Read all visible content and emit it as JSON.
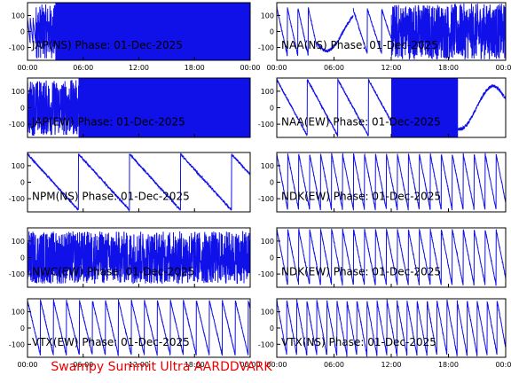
{
  "footer": "Swampy Summit Ultra AARDDVARK",
  "colors": {
    "trace": "#1010e8",
    "frame": "#000000",
    "footer": "#ee0000"
  },
  "chart_data": [
    {
      "type": "line",
      "title": "JAP(NS) Phase: 01-Dec-2025",
      "ylim": [
        -180,
        180
      ],
      "yticks": [
        100,
        0,
        -100
      ],
      "xlim": [
        0,
        24
      ],
      "xticks": [
        "00:00",
        "06:00",
        "12:00",
        "18:00",
        "00:00"
      ],
      "xticks_shown": true,
      "behavior": "noise",
      "segments": [
        {
          "from": 0,
          "to": 0.9,
          "mode": "sawtooth",
          "period": 0.3,
          "amp": 80
        },
        {
          "from": 0.9,
          "to": 3.0,
          "mode": "dense",
          "amp": 170
        },
        {
          "from": 3.0,
          "to": 24,
          "mode": "fill"
        }
      ]
    },
    {
      "type": "line",
      "title": "NAA(NS) Phase: 01-Dec-2025",
      "ylim": [
        -180,
        180
      ],
      "yticks": [
        100,
        0,
        -100
      ],
      "xlim": [
        0,
        24
      ],
      "xticks": [
        "00:00",
        "06:00",
        "12:00",
        "18:00",
        "00:00"
      ],
      "xticks_shown": true,
      "behavior": "noise",
      "segments": [
        {
          "from": 0,
          "to": 4.2,
          "mode": "sawtooth",
          "period": 1.1,
          "amp": 150
        },
        {
          "from": 4.2,
          "to": 8.0,
          "mode": "slow",
          "amp": 120
        },
        {
          "from": 8.0,
          "to": 12.0,
          "mode": "sawtooth",
          "period": 1.5,
          "amp": 140
        },
        {
          "from": 12.0,
          "to": 24,
          "mode": "dense",
          "amp": 175
        }
      ]
    },
    {
      "type": "line",
      "title": "JAP(EW) Phase: 01-Dec-2025",
      "ylim": [
        -180,
        180
      ],
      "yticks": [
        100,
        0,
        -100
      ],
      "xlim": [
        0,
        24
      ],
      "xticks": [],
      "xticks_shown": false,
      "behavior": "noise",
      "segments": [
        {
          "from": 0,
          "to": 5.5,
          "mode": "dense",
          "amp": 170
        },
        {
          "from": 5.5,
          "to": 24,
          "mode": "fill"
        }
      ]
    },
    {
      "type": "line",
      "title": "NAA(EW) Phase: 01-Dec-2025",
      "ylim": [
        -180,
        180
      ],
      "yticks": [
        100,
        0,
        -100
      ],
      "xlim": [
        0,
        24
      ],
      "xticks": [],
      "xticks_shown": false,
      "behavior": "noise",
      "segments": [
        {
          "from": 0,
          "to": 12.0,
          "mode": "sawtooth",
          "period": 3.2,
          "amp": 170
        },
        {
          "from": 12.0,
          "to": 19.0,
          "mode": "fill"
        },
        {
          "from": 19.0,
          "to": 24,
          "mode": "slow",
          "amp": 130
        }
      ]
    },
    {
      "type": "line",
      "title": "NPM(NS) Phase: 01-Dec-2025",
      "ylim": [
        -180,
        180
      ],
      "yticks": [
        100,
        0,
        -100
      ],
      "xlim": [
        0,
        24
      ],
      "xticks": [],
      "xticks_shown": false,
      "behavior": "noise",
      "segments": [
        {
          "from": 0,
          "to": 24,
          "mode": "sawtooth",
          "period": 5.5,
          "amp": 170
        }
      ]
    },
    {
      "type": "line",
      "title": "NDK(EW) Phase: 01-Dec-2025",
      "ylim": [
        -180,
        180
      ],
      "yticks": [
        100,
        0,
        -100
      ],
      "xlim": [
        0,
        24
      ],
      "xticks": [],
      "xticks_shown": false,
      "behavior": "noise",
      "segments": [
        {
          "from": 0,
          "to": 24,
          "mode": "sawtooth",
          "period": 1.15,
          "amp": 170
        }
      ]
    },
    {
      "type": "line",
      "title": "NWC(EW) Phase: 01-Dec-2025",
      "ylim": [
        -180,
        180
      ],
      "yticks": [
        100,
        0,
        -100
      ],
      "xlim": [
        0,
        24
      ],
      "xticks": [],
      "xticks_shown": false,
      "behavior": "noise",
      "segments": [
        {
          "from": 0,
          "to": 24,
          "mode": "dense",
          "amp": 160
        }
      ]
    },
    {
      "type": "line",
      "title": "NDK(EW) Phase: 01-Dec-2025",
      "ylim": [
        -180,
        180
      ],
      "yticks": [
        100,
        0,
        -100
      ],
      "xlim": [
        0,
        24
      ],
      "xticks": [],
      "xticks_shown": false,
      "behavior": "noise",
      "segments": [
        {
          "from": 0,
          "to": 24,
          "mode": "sawtooth",
          "period": 1.15,
          "amp": 170
        }
      ]
    },
    {
      "type": "line",
      "title": "VTX(EW) Phase: 01-Dec-2025",
      "ylim": [
        -180,
        180
      ],
      "yticks": [
        100,
        0,
        -100
      ],
      "xlim": [
        0,
        24
      ],
      "xticks": [
        "00:00",
        "06:00",
        "12:00",
        "18:00",
        "00:00"
      ],
      "xticks_shown": true,
      "behavior": "noise",
      "segments": [
        {
          "from": 0,
          "to": 24,
          "mode": "sawtooth",
          "period": 1.4,
          "amp": 170
        }
      ]
    },
    {
      "type": "line",
      "title": "VTX(NS) Phase: 01-Dec-2025",
      "ylim": [
        -180,
        180
      ],
      "yticks": [
        100,
        0,
        -100
      ],
      "xlim": [
        0,
        24
      ],
      "xticks": [
        "00:00",
        "06:00",
        "12:00",
        "18:00",
        "00:00"
      ],
      "xticks_shown": true,
      "behavior": "noise",
      "segments": [
        {
          "from": 0,
          "to": 24,
          "mode": "sawtooth",
          "period": 1.05,
          "amp": 170
        }
      ]
    }
  ]
}
